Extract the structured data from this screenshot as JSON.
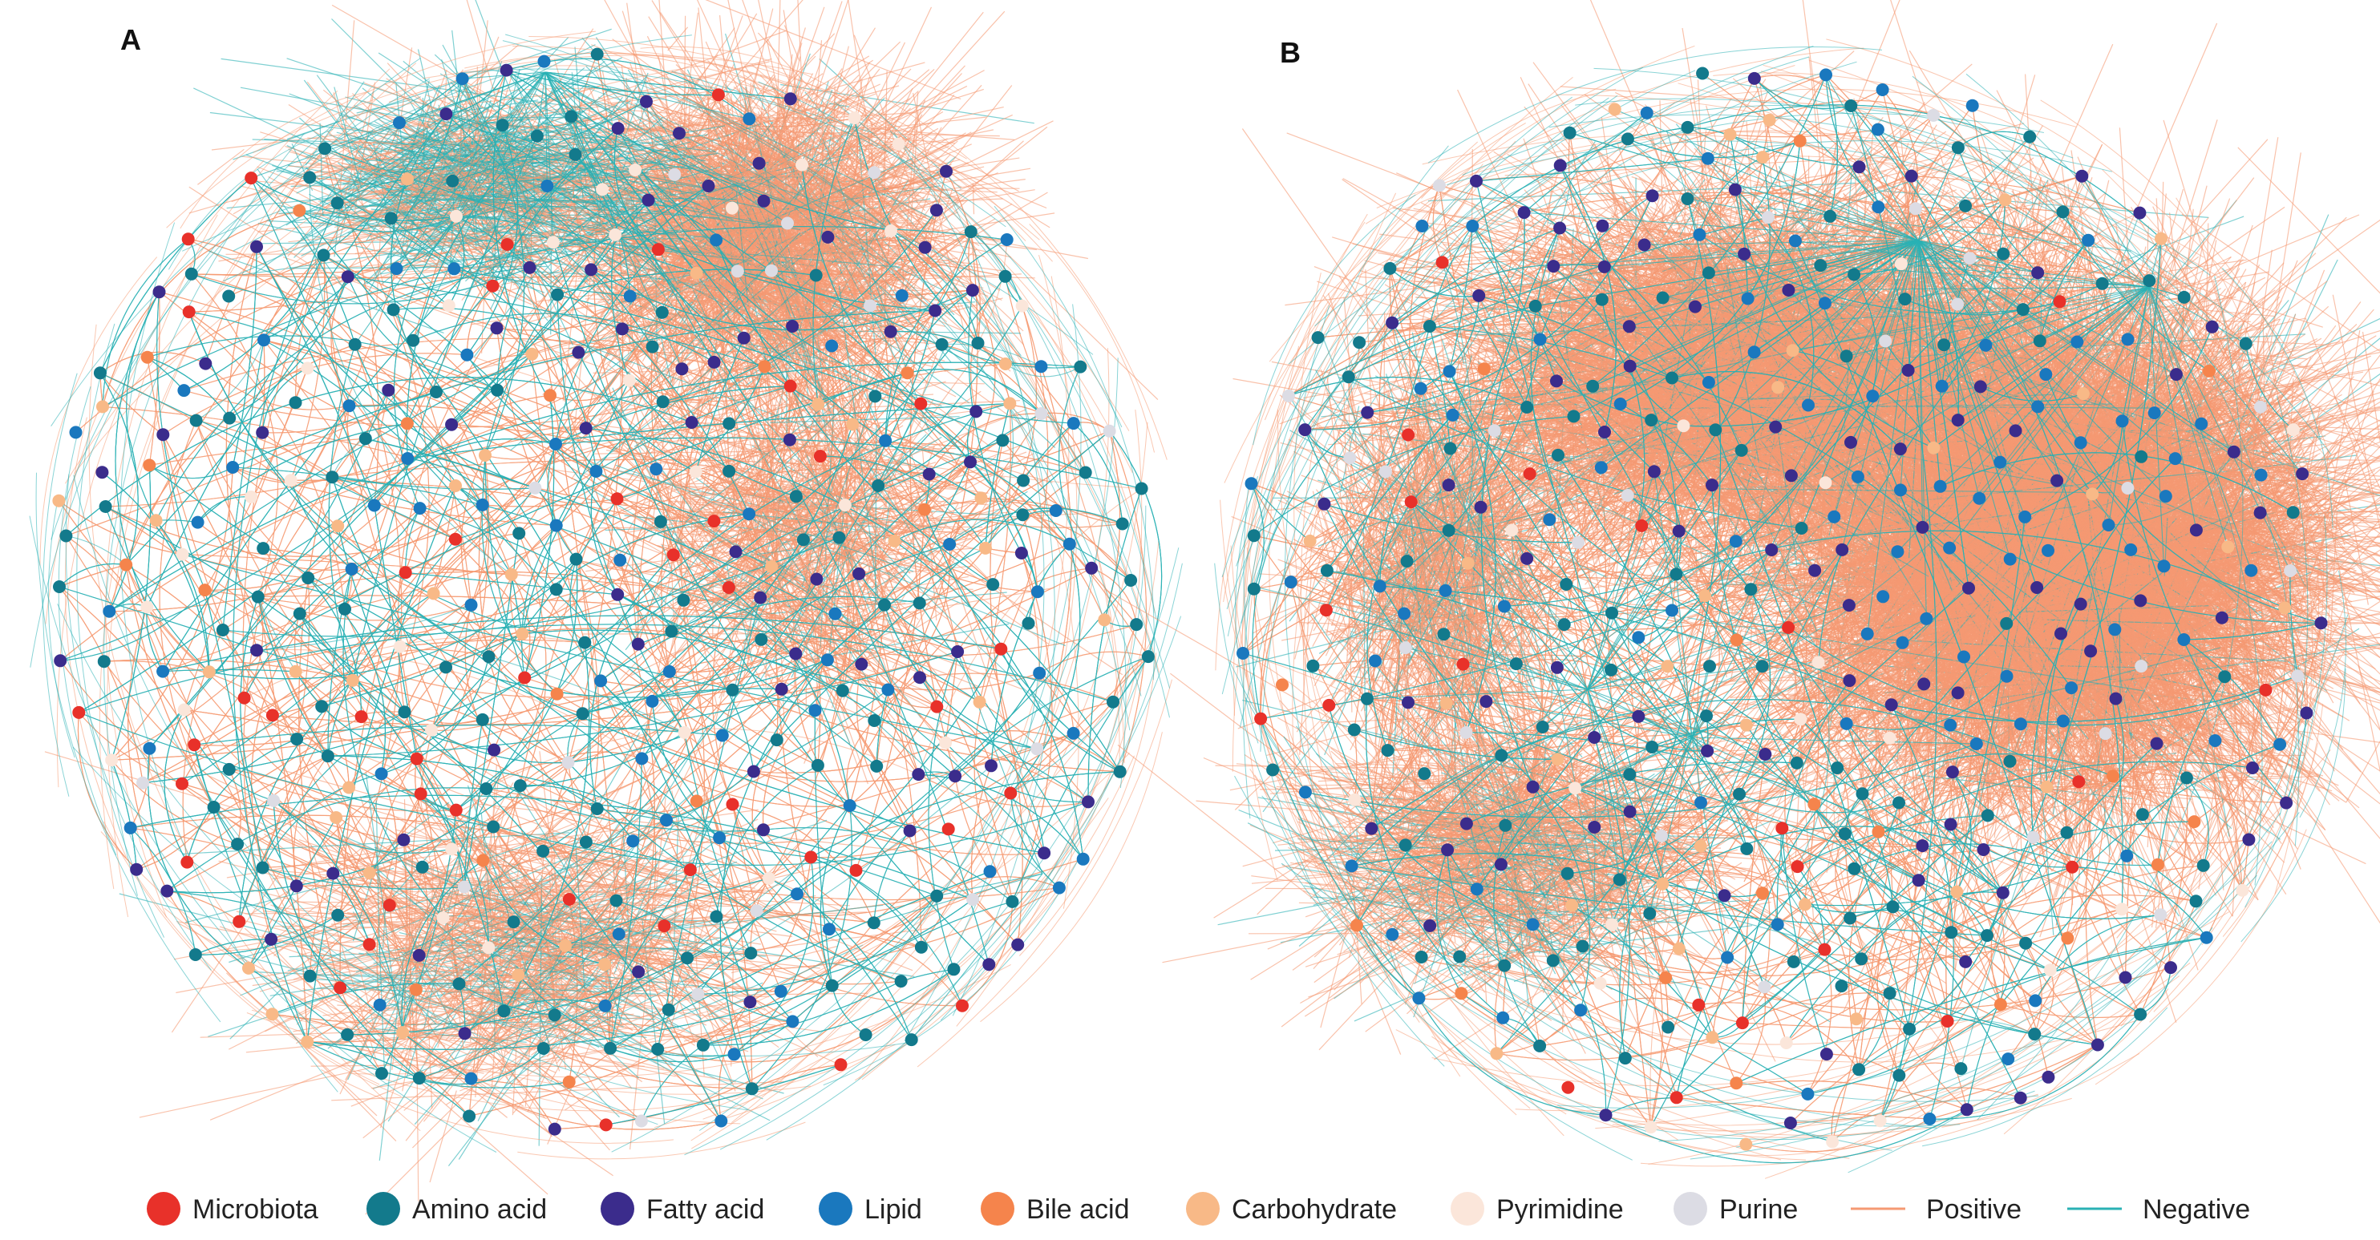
{
  "panels": [
    {
      "id": "A",
      "label": "A"
    },
    {
      "id": "B",
      "label": "B"
    }
  ],
  "node_categories": [
    {
      "key": "microbiota",
      "label": "Microbiota",
      "color": "#E8312A"
    },
    {
      "key": "amino",
      "label": "Amino acid",
      "color": "#137A8C"
    },
    {
      "key": "fatty",
      "label": "Fatty acid",
      "color": "#3B2C8C"
    },
    {
      "key": "lipid",
      "label": "Lipid",
      "color": "#1A78BE"
    },
    {
      "key": "bile",
      "label": "Bile acid",
      "color": "#F5844C"
    },
    {
      "key": "carb",
      "label": "Carbohydrate",
      "color": "#F8B987"
    },
    {
      "key": "pyrimidine",
      "label": "Pyrimidine",
      "color": "#FBE6DA"
    },
    {
      "key": "purine",
      "label": "Purine",
      "color": "#DCDCE4"
    }
  ],
  "edge_types": [
    {
      "key": "positive",
      "label": "Positive",
      "color": "#F59A73"
    },
    {
      "key": "negative",
      "label": "Negative",
      "color": "#2AB1B4"
    }
  ]
}
